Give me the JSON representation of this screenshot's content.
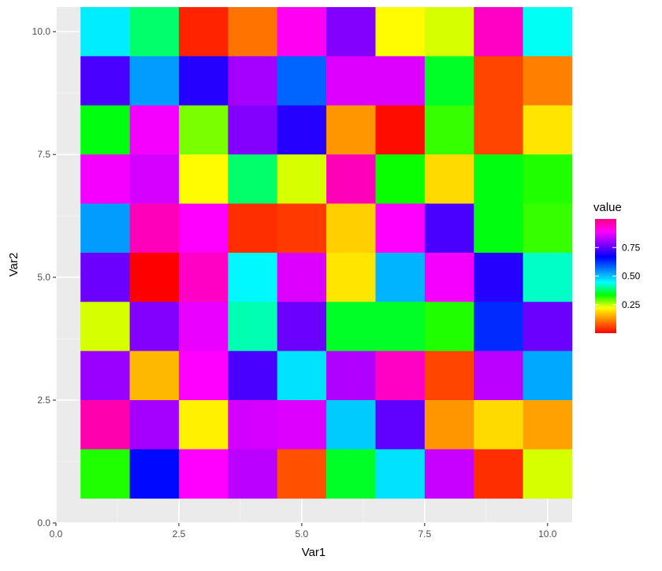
{
  "chart_data": {
    "type": "heatmap",
    "xlabel": "Var1",
    "ylabel": "Var2",
    "xlim": [
      0,
      10.5
    ],
    "ylim": [
      0,
      10.5
    ],
    "x_ticks": [
      0,
      2.5,
      5,
      7.5,
      10
    ],
    "y_ticks": [
      0,
      2.5,
      5,
      7.5,
      10
    ],
    "x_tick_labels": [
      "0.0",
      "2.5",
      "5.0",
      "7.5",
      "10.0"
    ],
    "y_tick_labels": [
      "0.0",
      "2.5",
      "5.0",
      "7.5",
      "10.0"
    ],
    "grid": true,
    "legend": {
      "title": "value",
      "placement": "right",
      "range": [
        0,
        1
      ],
      "breaks": [
        0.25,
        0.5,
        0.75
      ],
      "break_labels": [
        "0.25",
        "0.50",
        "0.75"
      ],
      "colors": [
        "#ff0000",
        "#ff8000",
        "#ffff00",
        "#00ff00",
        "#00ffff",
        "#0080ff",
        "#0000ff",
        "#8000ff",
        "#ff00ff",
        "#ff0080"
      ]
    },
    "rows_y": [
      10,
      9,
      8,
      7,
      6,
      5,
      4,
      3,
      2,
      1
    ],
    "cols_x": [
      1,
      2,
      3,
      4,
      5,
      6,
      7,
      8,
      9,
      10
    ],
    "values": [
      [
        0.46,
        0.38,
        0.03,
        0.1,
        0.9,
        0.78,
        0.22,
        0.24,
        0.94,
        0.44
      ],
      [
        0.73,
        0.53,
        0.7,
        0.81,
        0.58,
        0.86,
        0.86,
        0.35,
        0.06,
        0.11
      ],
      [
        0.34,
        0.88,
        0.28,
        0.78,
        0.7,
        0.13,
        0.01,
        0.31,
        0.06,
        0.2
      ],
      [
        0.88,
        0.85,
        0.22,
        0.38,
        0.24,
        0.95,
        0.33,
        0.19,
        0.34,
        0.32
      ],
      [
        0.53,
        0.95,
        0.89,
        0.04,
        0.05,
        0.18,
        0.89,
        0.73,
        0.34,
        0.31
      ],
      [
        0.76,
        0.0,
        0.94,
        0.45,
        0.86,
        0.2,
        0.51,
        0.88,
        0.7,
        0.42
      ],
      [
        0.24,
        0.78,
        0.87,
        0.41,
        0.76,
        0.35,
        0.35,
        0.32,
        0.63,
        0.76
      ],
      [
        0.8,
        0.16,
        0.89,
        0.73,
        0.47,
        0.82,
        0.94,
        0.06,
        0.83,
        0.52
      ],
      [
        0.96,
        0.81,
        0.21,
        0.85,
        0.86,
        0.49,
        0.75,
        0.13,
        0.19,
        0.14
      ],
      [
        0.32,
        0.66,
        0.89,
        0.83,
        0.07,
        0.35,
        0.47,
        0.84,
        0.04,
        0.24
      ]
    ]
  }
}
